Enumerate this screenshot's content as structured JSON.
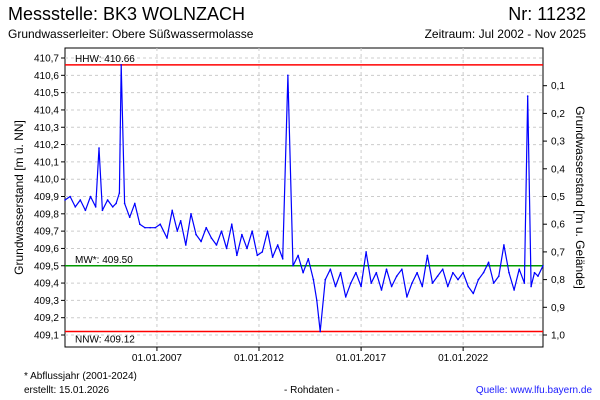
{
  "header": {
    "title_left": "Messstelle: BK3 WOLNZACH",
    "title_right": "Nr: 11232",
    "sub_left": "Grundwasserleiter:  Obere Süßwassermolasse",
    "sub_right": "Zeitraum: Jul 2002 - Nov 2025"
  },
  "footer": {
    "footnote": "* Abflussjahr (2001-2024)",
    "created": "erstellt:  15.01.2026",
    "rawdata": "- Rohdaten -",
    "source": "Quelle: www.lfu.bayern.de"
  },
  "colors": {
    "series": "#0000ff",
    "hhw_line": "#ff0000",
    "nnw_line": "#ff0000",
    "mw_line": "#009900",
    "source_link": "#1a1aff"
  },
  "chart_data": {
    "type": "line",
    "title": "",
    "ylabel": "Grundwasserstand [m ü. NN]",
    "ylabel_right": "Grundwasserstand [m u. Gelände]",
    "ylim": [
      409.1,
      410.7
    ],
    "ylim_right": [
      0.0,
      1.0
    ],
    "y_ticks": [
      "410,7",
      "410,6",
      "410,5",
      "410,4",
      "410,3",
      "410,2",
      "410,1",
      "410,0",
      "409,9",
      "409,8",
      "409,7",
      "409,6",
      "409,5",
      "409,4",
      "409,3",
      "409,2",
      "409,1"
    ],
    "y_ticks_right": [
      "0,1",
      "0,2",
      "0,3",
      "0,4",
      "0,5",
      "0,6",
      "0,7",
      "0,8",
      "0,9",
      "1,0"
    ],
    "xlim": [
      "2002-07-01",
      "2025-11-30"
    ],
    "x_ticks": [
      {
        "date": "2007-01-01",
        "label": "01.01.2007"
      },
      {
        "date": "2012-01-01",
        "label": "01.01.2012"
      },
      {
        "date": "2017-01-01",
        "label": "01.01.2017"
      },
      {
        "date": "2022-01-01",
        "label": "01.01.2022"
      }
    ],
    "grid": true,
    "reference_lines": [
      {
        "label": "HHW: 410.66",
        "value": 410.66
      },
      {
        "label": "MW*: 409.50",
        "value": 409.5
      },
      {
        "label": "NNW: 409.12",
        "value": 409.12
      }
    ],
    "series": [
      {
        "x": [
          "2002-07-01",
          "2002-10-01",
          "2003-01-01",
          "2003-04-01",
          "2003-07-01",
          "2003-10-01",
          "2004-01-01",
          "2004-03-01",
          "2004-05-01",
          "2004-08-01",
          "2004-11-01",
          "2005-01-01",
          "2005-03-01",
          "2005-04-01",
          "2005-06-01",
          "2005-09-01",
          "2005-12-01",
          "2006-03-01",
          "2006-06-01",
          "2006-09-01",
          "2006-12-01",
          "2007-03-01",
          "2007-07-01",
          "2007-10-01",
          "2008-01-01",
          "2008-03-01",
          "2008-06-01",
          "2008-09-01",
          "2008-12-01",
          "2009-03-01",
          "2009-06-01",
          "2009-09-01",
          "2009-12-01",
          "2010-03-01",
          "2010-06-01",
          "2010-09-01",
          "2010-12-01",
          "2011-03-01",
          "2011-06-01",
          "2011-09-01",
          "2011-12-01",
          "2012-03-01",
          "2012-06-01",
          "2012-09-01",
          "2012-12-01",
          "2013-03-01",
          "2013-06-01",
          "2013-09-01",
          "2013-12-01",
          "2014-03-01",
          "2014-06-01",
          "2014-09-01",
          "2014-11-01",
          "2015-01-01",
          "2015-04-01",
          "2015-07-01",
          "2015-10-01",
          "2016-01-01",
          "2016-04-01",
          "2016-07-01",
          "2016-10-01",
          "2017-01-01",
          "2017-04-01",
          "2017-07-01",
          "2017-10-01",
          "2018-01-01",
          "2018-04-01",
          "2018-07-01",
          "2018-10-01",
          "2019-01-01",
          "2019-04-01",
          "2019-07-01",
          "2019-10-01",
          "2020-01-01",
          "2020-04-01",
          "2020-07-01",
          "2020-10-01",
          "2021-01-01",
          "2021-04-01",
          "2021-07-01",
          "2021-10-01",
          "2022-01-01",
          "2022-04-01",
          "2022-07-01",
          "2022-10-01",
          "2023-01-01",
          "2023-04-01",
          "2023-07-01",
          "2023-10-01",
          "2024-01-01",
          "2024-04-01",
          "2024-07-01",
          "2024-10-01",
          "2025-01-01",
          "2025-03-01",
          "2025-05-01",
          "2025-07-01",
          "2025-09-01",
          "2025-11-30"
        ],
        "values": [
          409.88,
          409.9,
          409.84,
          409.88,
          409.82,
          409.9,
          409.84,
          410.18,
          409.82,
          409.88,
          409.84,
          409.86,
          409.92,
          410.66,
          409.86,
          409.78,
          409.86,
          409.74,
          409.72,
          409.72,
          409.72,
          409.74,
          409.66,
          409.82,
          409.7,
          409.76,
          409.62,
          409.8,
          409.68,
          409.64,
          409.72,
          409.66,
          409.62,
          409.7,
          409.6,
          409.74,
          409.56,
          409.68,
          409.6,
          409.7,
          409.56,
          409.58,
          409.7,
          409.55,
          409.62,
          409.54,
          410.6,
          409.5,
          409.56,
          409.46,
          409.54,
          409.42,
          409.3,
          409.12,
          409.42,
          409.48,
          409.38,
          409.46,
          409.32,
          409.4,
          409.46,
          409.38,
          409.58,
          409.4,
          409.46,
          409.36,
          409.48,
          409.38,
          409.44,
          409.48,
          409.32,
          409.4,
          409.46,
          409.38,
          409.56,
          409.4,
          409.44,
          409.48,
          409.38,
          409.46,
          409.42,
          409.46,
          409.38,
          409.34,
          409.42,
          409.46,
          409.52,
          409.4,
          409.44,
          409.62,
          409.46,
          409.36,
          409.48,
          409.4,
          410.48,
          409.38,
          409.46,
          409.44,
          409.5
        ]
      }
    ]
  }
}
